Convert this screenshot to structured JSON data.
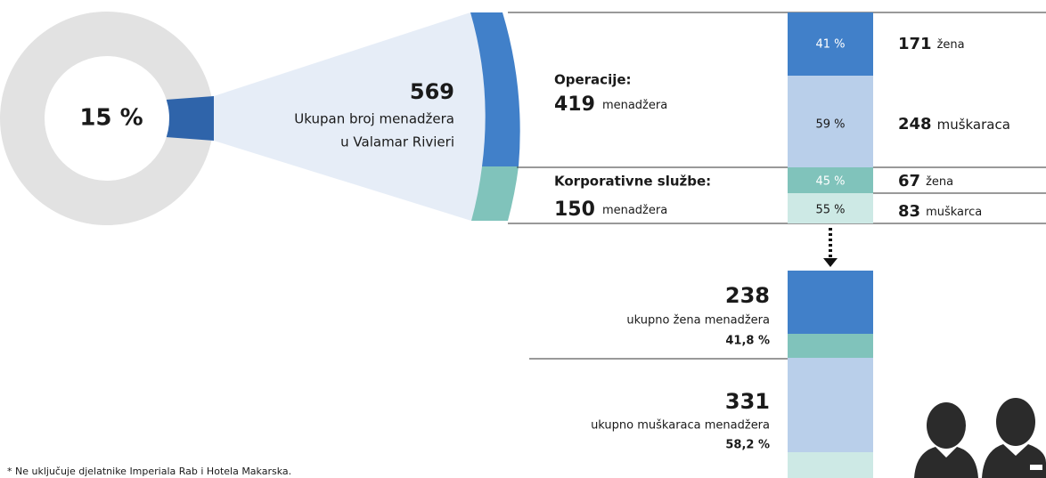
{
  "donut": {
    "label": "15 %"
  },
  "total": {
    "value": "569",
    "line1": "Ukupan broj menadžera",
    "line2": "u Valamar Rivieri"
  },
  "groups": [
    {
      "name": "Operacije:",
      "count": "419",
      "unit": "menadžera",
      "rows": [
        {
          "share": "41 %",
          "count": "171",
          "label": "žena"
        },
        {
          "share": "59 %",
          "count": "248",
          "label": "muškaraca"
        }
      ]
    },
    {
      "name": "Korporativne službe:",
      "count": "150",
      "unit": "menadžera",
      "rows": [
        {
          "share": "45 %",
          "count": "67",
          "label": "žena"
        },
        {
          "share": "55 %",
          "count": "83",
          "label": "muškarca"
        }
      ]
    }
  ],
  "totals": [
    {
      "count": "238",
      "label": "ukupno žena menadžera",
      "share": "41,8 %"
    },
    {
      "count": "331",
      "label": "ukupno muškaraca menadžera",
      "share": "58,2 %"
    }
  ],
  "footnote": "* Ne uključuje djelatnike Imperiala Rab i Hotela Makarska."
}
